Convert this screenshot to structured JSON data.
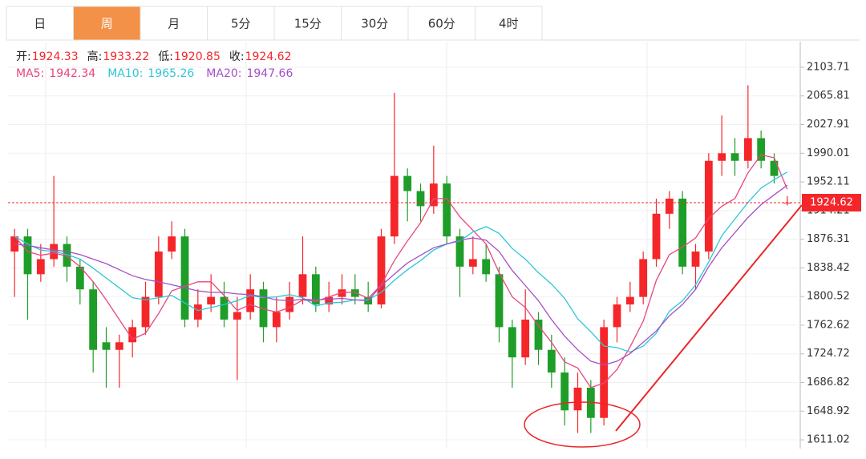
{
  "tabs": [
    "日",
    "周",
    "月",
    "5分",
    "15分",
    "30分",
    "60分",
    "4时"
  ],
  "active_tab": 1,
  "chart_data": {
    "type": "candlestick",
    "ohlc_labels": [
      "开:",
      "高:",
      "低:",
      "收:"
    ],
    "up_color": "#f5262a",
    "down_color": "#1e9e28",
    "candles": [
      [
        1860,
        1890,
        1800,
        1880
      ],
      [
        1880,
        1890,
        1770,
        1830
      ],
      [
        1830,
        1870,
        1820,
        1850
      ],
      [
        1850,
        1960,
        1840,
        1870
      ],
      [
        1870,
        1880,
        1820,
        1840
      ],
      [
        1840,
        1850,
        1790,
        1810
      ],
      [
        1810,
        1820,
        1700,
        1730
      ],
      [
        1740,
        1760,
        1680,
        1730
      ],
      [
        1730,
        1750,
        1680,
        1740
      ],
      [
        1740,
        1770,
        1720,
        1760
      ],
      [
        1760,
        1820,
        1750,
        1800
      ],
      [
        1800,
        1880,
        1790,
        1860
      ],
      [
        1860,
        1900,
        1850,
        1880
      ],
      [
        1880,
        1890,
        1760,
        1770
      ],
      [
        1770,
        1810,
        1760,
        1790
      ],
      [
        1790,
        1830,
        1780,
        1800
      ],
      [
        1800,
        1820,
        1760,
        1770
      ],
      [
        1770,
        1800,
        1690,
        1780
      ],
      [
        1780,
        1830,
        1770,
        1810
      ],
      [
        1810,
        1820,
        1740,
        1760
      ],
      [
        1760,
        1800,
        1740,
        1780
      ],
      [
        1780,
        1820,
        1770,
        1800
      ],
      [
        1800,
        1880,
        1790,
        1830
      ],
      [
        1830,
        1840,
        1780,
        1790
      ],
      [
        1790,
        1820,
        1780,
        1800
      ],
      [
        1800,
        1830,
        1790,
        1810
      ],
      [
        1810,
        1830,
        1790,
        1800
      ],
      [
        1800,
        1820,
        1780,
        1790
      ],
      [
        1790,
        1890,
        1785,
        1880
      ],
      [
        1880,
        2070,
        1870,
        1960
      ],
      [
        1960,
        1970,
        1900,
        1940
      ],
      [
        1940,
        1950,
        1900,
        1920
      ],
      [
        1920,
        2000,
        1910,
        1950
      ],
      [
        1950,
        1960,
        1870,
        1880
      ],
      [
        1880,
        1890,
        1800,
        1840
      ],
      [
        1840,
        1880,
        1830,
        1850
      ],
      [
        1850,
        1870,
        1820,
        1830
      ],
      [
        1830,
        1840,
        1740,
        1760
      ],
      [
        1760,
        1770,
        1680,
        1720
      ],
      [
        1720,
        1810,
        1710,
        1770
      ],
      [
        1770,
        1780,
        1710,
        1730
      ],
      [
        1730,
        1750,
        1680,
        1700
      ],
      [
        1700,
        1720,
        1630,
        1650
      ],
      [
        1650,
        1700,
        1620,
        1680
      ],
      [
        1680,
        1690,
        1620,
        1640
      ],
      [
        1640,
        1770,
        1630,
        1760
      ],
      [
        1760,
        1800,
        1740,
        1790
      ],
      [
        1790,
        1820,
        1780,
        1800
      ],
      [
        1800,
        1860,
        1790,
        1850
      ],
      [
        1850,
        1930,
        1840,
        1910
      ],
      [
        1910,
        1940,
        1890,
        1930
      ],
      [
        1930,
        1940,
        1830,
        1840
      ],
      [
        1840,
        1870,
        1810,
        1860
      ],
      [
        1860,
        1990,
        1850,
        1980
      ],
      [
        1980,
        2040,
        1960,
        1990
      ],
      [
        1990,
        2010,
        1960,
        1980
      ],
      [
        1980,
        2080,
        1970,
        2010
      ],
      [
        2010,
        2020,
        1970,
        1980
      ],
      [
        1980,
        1990,
        1950,
        1960
      ],
      [
        1924.33,
        1933.22,
        1920.85,
        1924.62
      ]
    ],
    "series": [
      {
        "name": "MA5:",
        "color": "#e8467c",
        "values": [
          1880,
          1860,
          1855,
          1858,
          1854,
          1840,
          1820,
          1796,
          1770,
          1744,
          1752,
          1778,
          1808,
          1814,
          1820,
          1820,
          1802,
          1782,
          1790,
          1784,
          1780,
          1786,
          1796,
          1794,
          1800,
          1806,
          1806,
          1798,
          1816,
          1848,
          1874,
          1898,
          1930,
          1930,
          1906,
          1888,
          1870,
          1832,
          1800,
          1786,
          1762,
          1740,
          1714,
          1706,
          1680,
          1686,
          1704,
          1734,
          1768,
          1822,
          1856,
          1866,
          1878,
          1904,
          1920,
          1930,
          1964,
          1988,
          1984,
          1942.34
        ]
      },
      {
        "name": "MA10:",
        "color": "#2ec7d6",
        "values": [
          1880,
          1870,
          1862,
          1860,
          1856,
          1850,
          1838,
          1825,
          1812,
          1799,
          1796,
          1799,
          1802,
          1792,
          1782,
          1786,
          1790,
          1795,
          1802,
          1799,
          1800,
          1803,
          1799,
          1788,
          1792,
          1793,
          1796,
          1796,
          1806,
          1822,
          1836,
          1848,
          1862,
          1870,
          1874,
          1886,
          1893,
          1884,
          1864,
          1850,
          1832,
          1817,
          1798,
          1771,
          1754,
          1735,
          1733,
          1727,
          1735,
          1752,
          1781,
          1795,
          1816,
          1846,
          1881,
          1903,
          1925,
          1944,
          1955,
          1965.26
        ]
      },
      {
        "name": "MA20:",
        "color": "#a54fc8",
        "values": [
          1870,
          1868,
          1865,
          1862,
          1860,
          1856,
          1850,
          1844,
          1836,
          1828,
          1823,
          1820,
          1816,
          1812,
          1808,
          1806,
          1806,
          1804,
          1803,
          1800,
          1796,
          1795,
          1797,
          1796,
          1797,
          1798,
          1796,
          1795,
          1815,
          1830,
          1845,
          1855,
          1865,
          1870,
          1875,
          1878,
          1875,
          1860,
          1835,
          1815,
          1795,
          1770,
          1748,
          1730,
          1715,
          1710,
          1715,
          1725,
          1740,
          1755,
          1775,
          1790,
          1810,
          1840,
          1865,
          1885,
          1905,
          1922,
          1935,
          1947.66
        ]
      }
    ],
    "ylim": [
      1599.4,
      2139.7
    ],
    "yticks": [
      1611.02,
      1648.92,
      1686.82,
      1724.72,
      1762.62,
      1800.52,
      1838.42,
      1876.31,
      1914.21,
      1952.11,
      1990.01,
      2027.91,
      2065.81,
      2103.71
    ]
  }
}
